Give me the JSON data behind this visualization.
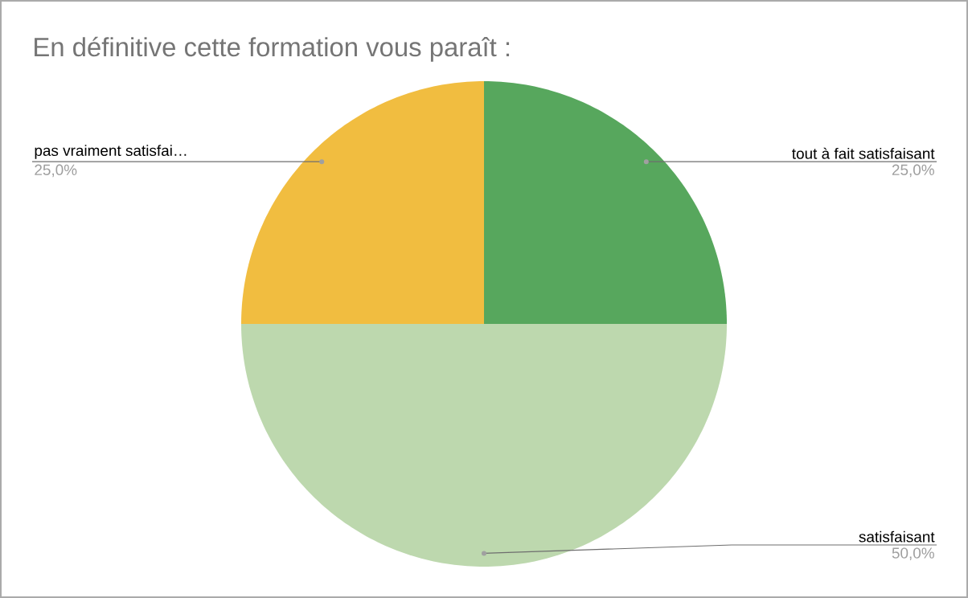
{
  "chart_data": {
    "type": "pie",
    "title": "En définitive cette formation vous paraît :",
    "categories": [
      "tout à fait satisfaisant",
      "satisfaisant",
      "pas vraiment satisfai…"
    ],
    "values": [
      25,
      50,
      25
    ],
    "colors": [
      "#57a75d",
      "#bdd8ae",
      "#f1bd40"
    ],
    "value_labels": [
      "25,0%",
      "50,0%",
      "25,0%"
    ]
  }
}
